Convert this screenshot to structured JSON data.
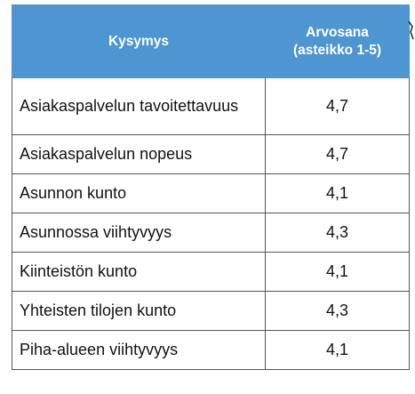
{
  "table": {
    "header": {
      "question": "Kysymys",
      "rating_line1": "Arvosana",
      "rating_line2": "(asteikko 1-5)"
    },
    "rows": [
      {
        "question": "Asiakaspalvelun tavoitettavuus",
        "rating": "4,7"
      },
      {
        "question": "Asiakaspalvelun nopeus",
        "rating": "4,7"
      },
      {
        "question": "Asunnon kunto",
        "rating": "4,1"
      },
      {
        "question": "Asunnossa viihtyvyys",
        "rating": "4,3"
      },
      {
        "question": "Kiinteistön kunto",
        "rating": "4,1"
      },
      {
        "question": "Yhteisten tilojen kunto",
        "rating": "4,3"
      },
      {
        "question": "Piha-alueen viihtyvyys",
        "rating": "4,1"
      }
    ]
  },
  "colors": {
    "header_background": "#4d96d1",
    "header_text": "#ffffff",
    "border": "#555555"
  }
}
